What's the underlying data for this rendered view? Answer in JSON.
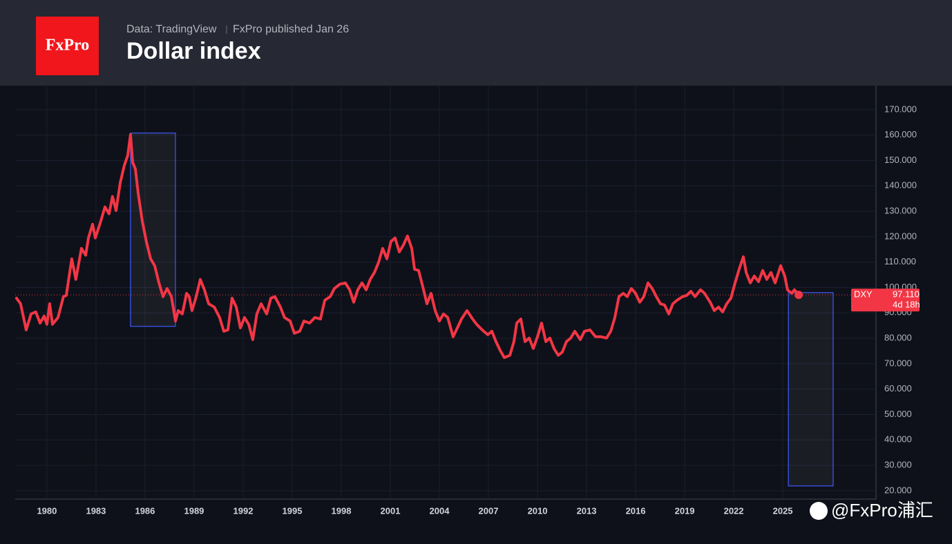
{
  "header": {
    "logo": "FxPro",
    "source": "Data: TradingView",
    "published": "FxPro published Jan 26"
  },
  "watermark": "@FxPro浦汇",
  "chart_data": {
    "type": "line",
    "title": "Dollar index",
    "x": [
      1978.14,
      1978.39,
      1978.73,
      1979.03,
      1979.32,
      1979.58,
      1979.83,
      1980.0,
      1980.17,
      1980.34,
      1980.68,
      1981.01,
      1981.18,
      1981.52,
      1981.77,
      1982.11,
      1982.37,
      1982.54,
      1982.79,
      1982.96,
      1983.3,
      1983.55,
      1983.8,
      1984.01,
      1984.23,
      1984.48,
      1984.73,
      1984.94,
      1985.11,
      1985.24,
      1985.41,
      1985.58,
      1985.83,
      1986.08,
      1986.34,
      1986.59,
      1986.85,
      1987.1,
      1987.35,
      1987.61,
      1987.86,
      1988.03,
      1988.28,
      1988.54,
      1988.7,
      1988.87,
      1989.13,
      1989.38,
      1989.63,
      1989.89,
      1990.23,
      1990.56,
      1990.82,
      1991.07,
      1991.32,
      1991.58,
      1991.83,
      1992.08,
      1992.34,
      1992.59,
      1992.84,
      1993.1,
      1993.44,
      1993.69,
      1993.94,
      1994.28,
      1994.53,
      1994.87,
      1995.13,
      1995.46,
      1995.72,
      1996.06,
      1996.39,
      1996.73,
      1996.99,
      1997.32,
      1997.58,
      1997.91,
      1998.25,
      1998.51,
      1998.76,
      1999.01,
      1999.27,
      1999.52,
      1999.77,
      2000.03,
      2000.28,
      2000.53,
      2000.79,
      2001.04,
      2001.29,
      2001.55,
      2001.8,
      2002.05,
      2002.31,
      2002.48,
      2002.73,
      2002.98,
      2003.24,
      2003.49,
      2003.74,
      2004.0,
      2004.25,
      2004.51,
      2004.84,
      2005.1,
      2005.35,
      2005.69,
      2006.03,
      2006.28,
      2006.62,
      2006.96,
      2007.21,
      2007.46,
      2007.72,
      2007.97,
      2008.31,
      2008.56,
      2008.73,
      2008.98,
      2009.24,
      2009.49,
      2009.74,
      2010.0,
      2010.25,
      2010.51,
      2010.76,
      2011.01,
      2011.27,
      2011.52,
      2011.77,
      2012.03,
      2012.28,
      2012.62,
      2012.87,
      2013.21,
      2013.55,
      2013.89,
      2014.22,
      2014.48,
      2014.73,
      2014.98,
      2015.24,
      2015.49,
      2015.74,
      2016.0,
      2016.25,
      2016.5,
      2016.76,
      2017.01,
      2017.27,
      2017.52,
      2017.77,
      2018.03,
      2018.28,
      2018.53,
      2018.87,
      2019.12,
      2019.38,
      2019.63,
      2019.97,
      2020.22,
      2020.56,
      2020.81,
      2021.07,
      2021.32,
      2021.57,
      2021.83,
      2022.08,
      2022.33,
      2022.59,
      2022.76,
      2023.01,
      2023.26,
      2023.52,
      2023.77,
      2024.02,
      2024.28,
      2024.53,
      2024.87,
      2025.12,
      2025.29,
      2025.55,
      2025.71,
      2025.97
    ],
    "series": [
      {
        "name": "DXY",
        "color": "#f23645",
        "values": [
          95.8,
          93.6,
          83.3,
          89.6,
          90.4,
          86,
          88.8,
          85.5,
          93.6,
          85.5,
          88.2,
          96.4,
          96.9,
          111.3,
          103.2,
          115.4,
          112.7,
          119.5,
          124.9,
          119.5,
          126.2,
          131.7,
          129,
          135.8,
          130.3,
          141.2,
          148,
          152,
          160.2,
          149.3,
          146.6,
          137.1,
          126.2,
          118.1,
          111.3,
          108.6,
          101.8,
          96.4,
          99.6,
          96.4,
          86.8,
          90.9,
          89.6,
          97.7,
          96.4,
          90.9,
          96.4,
          103.2,
          99.1,
          93.6,
          92.3,
          88.2,
          82.8,
          83.3,
          95.8,
          92.3,
          84.1,
          88.2,
          85.5,
          79.5,
          89.6,
          93.6,
          89.6,
          95.8,
          96.4,
          92.3,
          88.2,
          86.8,
          82,
          82.8,
          86.8,
          86,
          88.2,
          87.6,
          95,
          96.4,
          99.6,
          101.3,
          101.8,
          99.1,
          94.2,
          99.1,
          101.8,
          99.1,
          103.2,
          105.9,
          109.9,
          115.4,
          111.3,
          118.1,
          119.5,
          114,
          116.7,
          120.3,
          115.4,
          107.2,
          106.7,
          100.4,
          93.6,
          97.7,
          90.9,
          86.8,
          89.6,
          88.2,
          80.6,
          84.1,
          87.6,
          90.9,
          87.6,
          85.5,
          83.3,
          81.4,
          82.8,
          78.7,
          75.2,
          72.4,
          73.3,
          78.7,
          86,
          87.6,
          78.7,
          80.1,
          76,
          80.6,
          86,
          78.7,
          80.1,
          76,
          73.3,
          74.6,
          78.7,
          80.1,
          82.8,
          79.5,
          82.8,
          83.3,
          80.6,
          80.6,
          80.1,
          82.8,
          88.2,
          96.4,
          97.7,
          96.4,
          99.6,
          97.7,
          94.2,
          96.4,
          101.8,
          99.6,
          96.4,
          93.6,
          93.1,
          89.6,
          93.6,
          95,
          96.4,
          96.9,
          98.5,
          96.4,
          99.1,
          97.7,
          94.2,
          90.9,
          92.3,
          90.4,
          93.6,
          95.8,
          101.8,
          107.2,
          112.1,
          105.9,
          101.8,
          104.5,
          102.3,
          106.7,
          103.2,
          105.9,
          101.8,
          108.6,
          104.5,
          99.1,
          97.7,
          99.1,
          97.11
        ],
        "last_value_label": "97.110",
        "countdown": "4d 18h"
      }
    ],
    "boxes": [
      {
        "x": [
          1985.11,
          1987.86
        ],
        "y": [
          84.7,
          160.8
        ]
      },
      {
        "x": [
          2025.34,
          2028.08
        ],
        "y": [
          21.9,
          98.0
        ]
      }
    ],
    "box_color": "#3d5afe",
    "xlim": [
      1978.06,
      2030.7
    ],
    "xticks": [
      1980,
      1983,
      1986,
      1989,
      1992,
      1995,
      1998,
      2001,
      2004,
      2007,
      2010,
      2013,
      2016,
      2019,
      2022,
      2025
    ],
    "ylim": [
      16.7,
      179.2
    ],
    "yticks": [
      {
        "value": 20,
        "label": "20.000"
      },
      {
        "value": 30,
        "label": "30.000"
      },
      {
        "value": 40,
        "label": "40.000"
      },
      {
        "value": 50,
        "label": "50.000"
      },
      {
        "value": 60,
        "label": "60.000"
      },
      {
        "value": 70,
        "label": "70.000"
      },
      {
        "value": 80,
        "label": "80.000"
      },
      {
        "value": 90,
        "label": "90.000"
      },
      {
        "value": 100,
        "label": "100.000"
      },
      {
        "value": 110,
        "label": "110.000"
      },
      {
        "value": 120,
        "label": "120.000"
      },
      {
        "value": 130,
        "label": "130.000"
      },
      {
        "value": 140,
        "label": "140.000"
      },
      {
        "value": 150,
        "label": "150.000"
      },
      {
        "value": 160,
        "label": "160.000"
      },
      {
        "value": 170,
        "label": "170.000"
      }
    ],
    "grid": true
  }
}
